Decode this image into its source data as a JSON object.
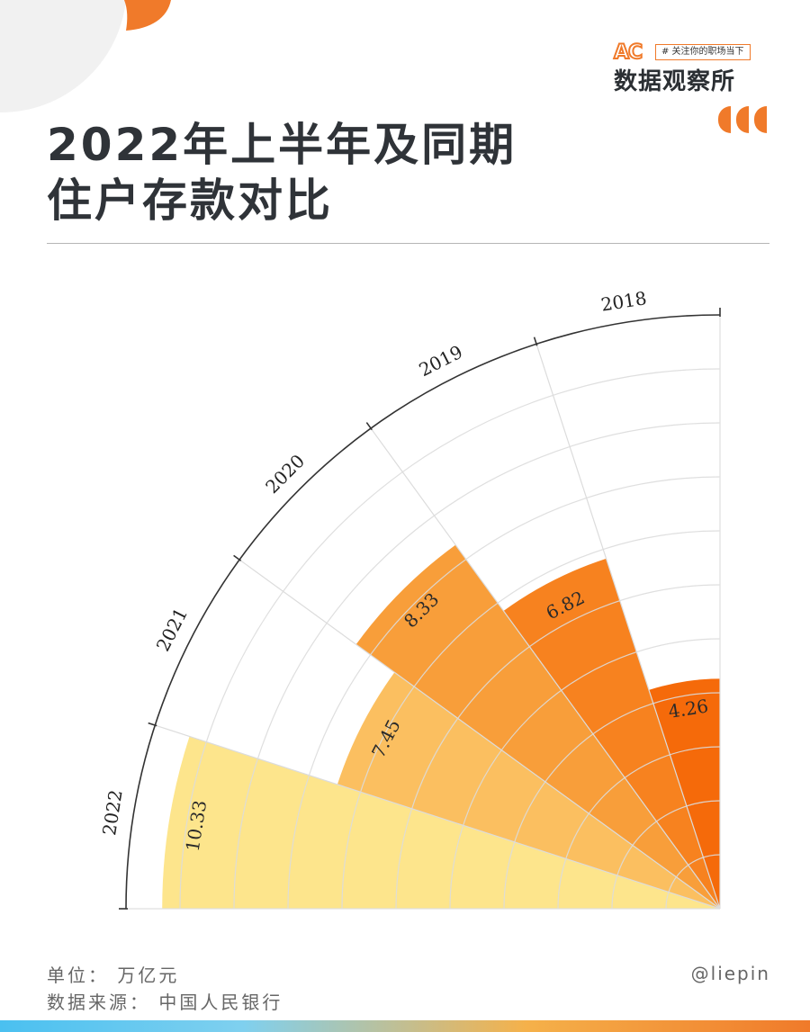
{
  "brand": {
    "logo_text": "AC",
    "tagline": "# 关注你的职场当下",
    "name": "数据观察所"
  },
  "title": {
    "line1": "2022年上半年及同期",
    "line2": "住户存款对比"
  },
  "chart_data": {
    "type": "bar",
    "subtype": "polar-rose-quarter",
    "categories": [
      "2018",
      "2019",
      "2020",
      "2021",
      "2022"
    ],
    "values": [
      4.26,
      6.82,
      8.33,
      7.45,
      10.33
    ],
    "value_labels": [
      "4.26",
      "6.82",
      "8.33",
      "7.45",
      "10.33"
    ],
    "colors": [
      "#f56a0a",
      "#f7821f",
      "#f89e3a",
      "#fbbf60",
      "#fde58c"
    ],
    "radial_range": [
      0,
      11
    ],
    "grid": true,
    "legend": "none"
  },
  "footer": {
    "unit": "单位： 万亿元",
    "source": "数据来源： 中国人民银行",
    "handle": "@liepin"
  },
  "colors": {
    "accent": "#f07a2a",
    "grid": "#dcdcdc",
    "axis": "#333333"
  }
}
